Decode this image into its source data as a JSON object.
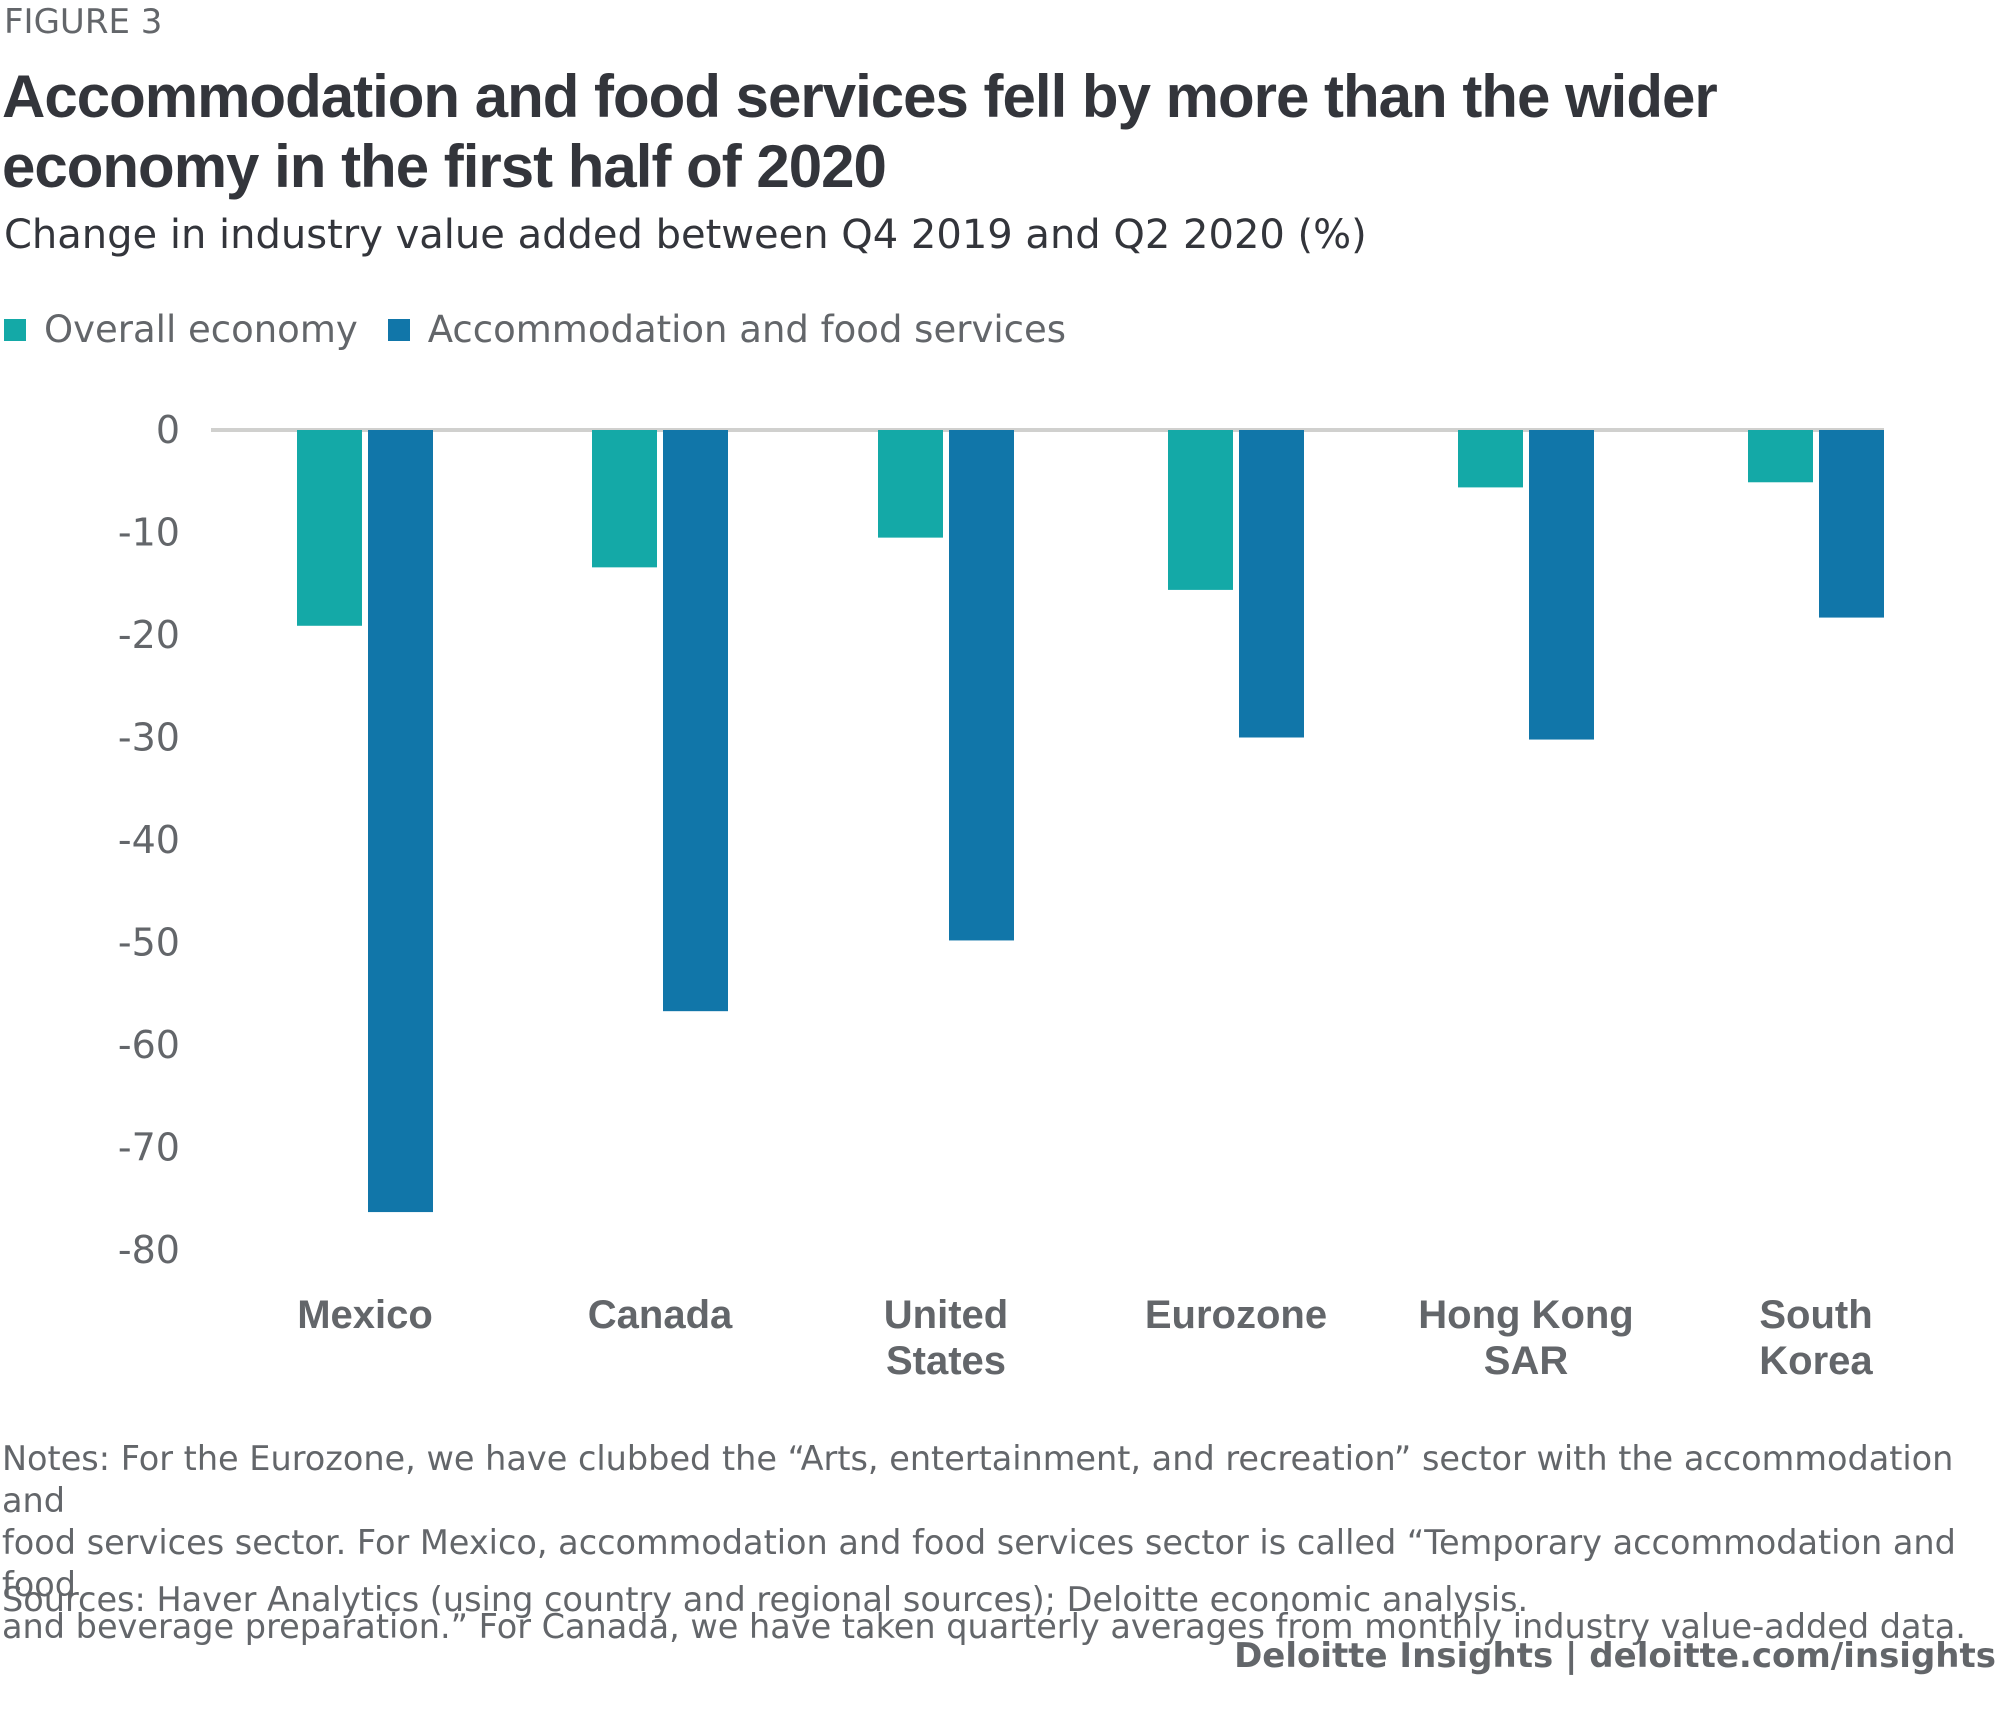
{
  "header": {
    "figure_label": "FIGURE 3",
    "title": "Accommodation and food services fell by more than the wider economy in the first half of 2020",
    "subtitle": "Change in industry value added between Q4 2019 and Q2 2020 (%)"
  },
  "legend": {
    "items": [
      {
        "label": "Overall economy",
        "color": "#14a9a7"
      },
      {
        "label": "Accommodation and food services",
        "color": "#1176a9"
      }
    ]
  },
  "chart_data": {
    "type": "bar",
    "title": "Accommodation and food services fell by more than the wider economy in the first half of 2020",
    "subtitle": "Change in industry value added between Q4 2019 and Q2 2020 (%)",
    "xlabel": "",
    "ylabel": "",
    "categories": [
      [
        "Mexico"
      ],
      [
        "Canada"
      ],
      [
        "United",
        "States"
      ],
      [
        "Eurozone"
      ],
      [
        "Hong Kong",
        "SAR"
      ],
      [
        "South",
        "Korea"
      ]
    ],
    "series": [
      {
        "name": "Overall economy",
        "color": "#14a9a7",
        "values": [
          -19.1,
          -13.4,
          -10.5,
          -15.6,
          -5.6,
          -5.1
        ]
      },
      {
        "name": "Accommodation and food services",
        "color": "#1176a9",
        "values": [
          -76.3,
          -56.7,
          -49.8,
          -30.0,
          -30.2,
          -18.3
        ]
      }
    ],
    "yticks": [
      0,
      -10,
      -20,
      -30,
      -40,
      -50,
      -60,
      -70,
      -80
    ],
    "ylim": [
      -80,
      0
    ],
    "grid": false,
    "zero_line_color": "#d0d0ce",
    "legend_position": "top-left"
  },
  "notes": {
    "lines": [
      "Notes: For the Eurozone, we have clubbed the “Arts, entertainment, and recreation” sector with the accommodation and",
      "food services sector. For Mexico, accommodation and food services sector is called “Temporary accommodation and food",
      "and beverage preparation.” For Canada, we have taken quarterly averages from monthly industry value-added data."
    ],
    "sources": "Sources: Haver Analytics (using country and regional sources); Deloitte economic analysis."
  },
  "footer": {
    "credit": "Deloitte Insights | deloitte.com/insights"
  }
}
